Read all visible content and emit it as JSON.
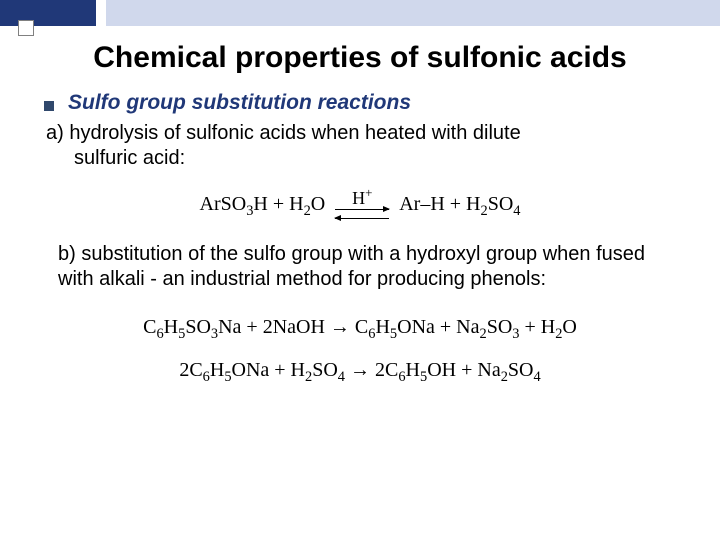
{
  "colors": {
    "accent_dark": "#203878",
    "accent_light": "#d0d8ec",
    "bullet_square": "#30486c",
    "text": "#000000",
    "background": "#ffffff"
  },
  "typography": {
    "title_fontsize_pt": 30,
    "body_fontsize_pt": 20,
    "bullet_fontsize_pt": 21,
    "equation_font": "Times New Roman",
    "body_font": "Arial"
  },
  "title": "Chemical properties of sulfonic acids",
  "bullet": "Sulfo group substitution reactions",
  "item_a": {
    "label": "a)",
    "line1": "hydrolysis of sulfonic acids when heated with dilute",
    "line2": "sulfuric acid:"
  },
  "equation1": {
    "lhs": "ArSO₃H + H₂O",
    "catalyst": "H⁺",
    "arrow": "equilibrium",
    "rhs": "Ar–H + H₂SO₄"
  },
  "item_b": "b) substitution of the sulfo group with a hydroxyl group when fused with alkali - an industrial method for producing phenols:",
  "equation2": "C₆H₅SO₃Na + 2NaOH → C₆H₅ONa + Na₂SO₃ + H₂O",
  "equation3": "2C₆H₅ONa + H₂SO₄ → 2C₆H₅OH + Na₂SO₄"
}
